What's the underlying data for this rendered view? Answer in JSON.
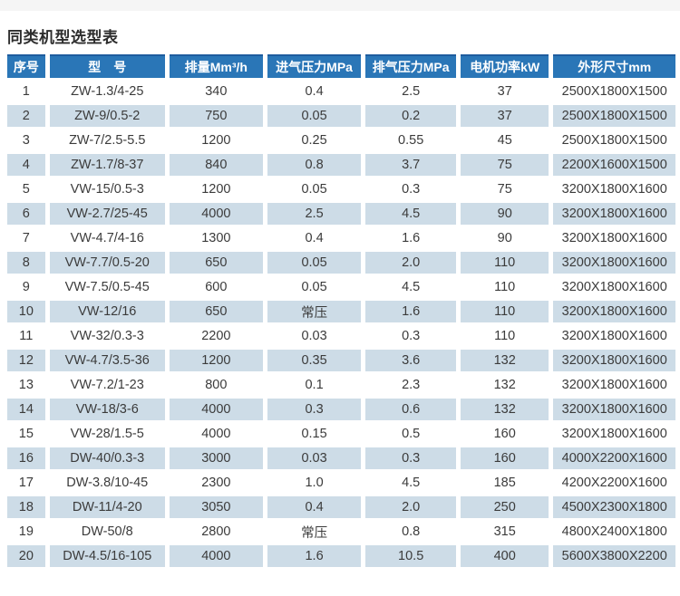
{
  "page_title": "同类机型选型表",
  "colors": {
    "header_bg": "#2a76b7",
    "header_border_top": "#1e5c9e",
    "alt_row_bg": "#cddce7",
    "text": "#3b3b3b"
  },
  "table": {
    "headers": [
      "序号",
      "型　号",
      "排量Mm³/h",
      "进气压力MPa",
      "排气压力MPa",
      "电机功率kW",
      "外形尺寸mm"
    ],
    "rows": [
      [
        "1",
        "ZW-1.3/4-25",
        "340",
        "0.4",
        "2.5",
        "37",
        "2500X1800X1500"
      ],
      [
        "2",
        "ZW-9/0.5-2",
        "750",
        "0.05",
        "0.2",
        "37",
        "2500X1800X1500"
      ],
      [
        "3",
        "ZW-7/2.5-5.5",
        "1200",
        "0.25",
        "0.55",
        "45",
        "2500X1800X1500"
      ],
      [
        "4",
        "ZW-1.7/8-37",
        "840",
        "0.8",
        "3.7",
        "75",
        "2200X1600X1500"
      ],
      [
        "5",
        "VW-15/0.5-3",
        "1200",
        "0.05",
        "0.3",
        "75",
        "3200X1800X1600"
      ],
      [
        "6",
        "VW-2.7/25-45",
        "4000",
        "2.5",
        "4.5",
        "90",
        "3200X1800X1600"
      ],
      [
        "7",
        "VW-4.7/4-16",
        "1300",
        "0.4",
        "1.6",
        "90",
        "3200X1800X1600"
      ],
      [
        "8",
        "VW-7.7/0.5-20",
        "650",
        "0.05",
        "2.0",
        "110",
        "3200X1800X1600"
      ],
      [
        "9",
        "VW-7.5/0.5-45",
        "600",
        "0.05",
        "4.5",
        "110",
        "3200X1800X1600"
      ],
      [
        "10",
        "VW-12/16",
        "650",
        "常压",
        "1.6",
        "110",
        "3200X1800X1600"
      ],
      [
        "11",
        "VW-32/0.3-3",
        "2200",
        "0.03",
        "0.3",
        "110",
        "3200X1800X1600"
      ],
      [
        "12",
        "VW-4.7/3.5-36",
        "1200",
        "0.35",
        "3.6",
        "132",
        "3200X1800X1600"
      ],
      [
        "13",
        "VW-7.2/1-23",
        "800",
        "0.1",
        "2.3",
        "132",
        "3200X1800X1600"
      ],
      [
        "14",
        "VW-18/3-6",
        "4000",
        "0.3",
        "0.6",
        "132",
        "3200X1800X1600"
      ],
      [
        "15",
        "VW-28/1.5-5",
        "4000",
        "0.15",
        "0.5",
        "160",
        "3200X1800X1600"
      ],
      [
        "16",
        "DW-40/0.3-3",
        "3000",
        "0.03",
        "0.3",
        "160",
        "4000X2200X1600"
      ],
      [
        "17",
        "DW-3.8/10-45",
        "2300",
        "1.0",
        "4.5",
        "185",
        "4200X2200X1600"
      ],
      [
        "18",
        "DW-11/4-20",
        "3050",
        "0.4",
        "2.0",
        "250",
        "4500X2300X1800"
      ],
      [
        "19",
        "DW-50/8",
        "2800",
        "常压",
        "0.8",
        "315",
        "4800X2400X1800"
      ],
      [
        "20",
        "DW-4.5/16-105",
        "4000",
        "1.6",
        "10.5",
        "400",
        "5600X3800X2200"
      ]
    ]
  }
}
